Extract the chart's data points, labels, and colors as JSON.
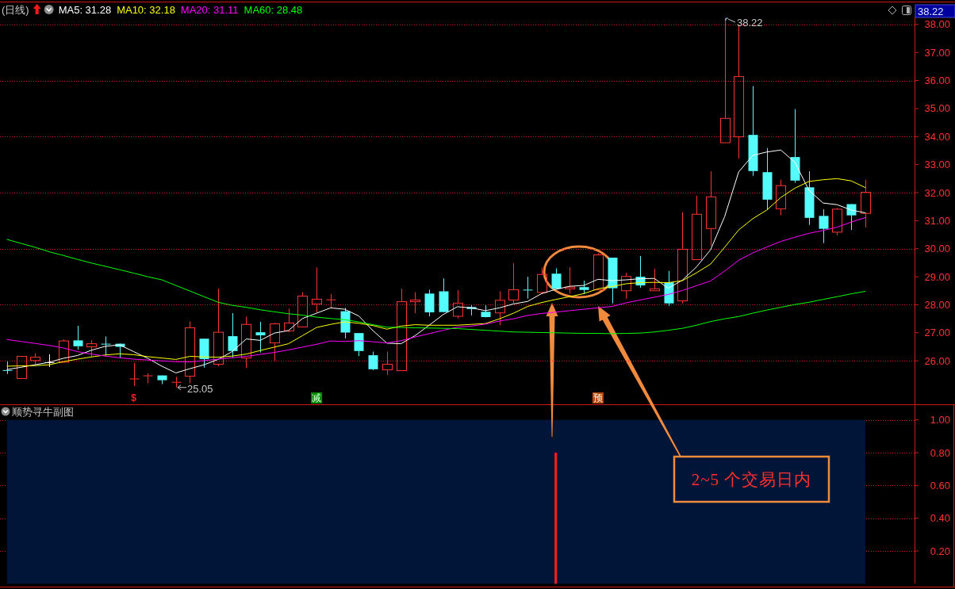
{
  "chart_data": [
    {
      "type": "candlestick",
      "title": "(日线)",
      "categories": [
        null,
        null,
        null,
        null,
        null,
        null,
        null,
        null,
        null,
        null,
        null,
        null,
        null,
        null,
        null,
        null,
        null,
        null,
        null,
        null,
        null,
        null,
        null,
        null,
        null,
        null,
        null,
        null,
        null,
        null,
        null,
        null,
        null,
        null,
        null,
        null,
        null,
        null,
        null,
        null,
        null,
        null,
        null,
        null,
        null,
        null,
        null,
        null,
        null,
        null,
        null,
        null,
        null,
        null,
        null,
        null,
        null,
        null,
        null,
        null,
        null,
        null,
        null,
        null,
        null
      ],
      "ohlc": [
        [
          25.67,
          25.97,
          25.53,
          25.67
        ],
        [
          25.37,
          26.16,
          25.37,
          26.16
        ],
        [
          26.01,
          26.27,
          25.82,
          26.13
        ],
        [
          25.95,
          26.23,
          25.78,
          25.95
        ],
        [
          25.95,
          26.77,
          25.95,
          26.71
        ],
        [
          26.73,
          27.25,
          26.4,
          26.52
        ],
        [
          26.5,
          26.74,
          26.12,
          26.61
        ],
        [
          26.61,
          26.87,
          26.19,
          26.61
        ],
        [
          26.61,
          26.62,
          26.12,
          26.5
        ],
        [
          25.37,
          25.93,
          25.1,
          25.37
        ],
        [
          25.48,
          25.55,
          25.2,
          25.48
        ],
        [
          25.48,
          25.48,
          25.17,
          25.31
        ],
        [
          25.25,
          25.43,
          25.05,
          25.25
        ],
        [
          25.45,
          27.41,
          25.2,
          27.18
        ],
        [
          26.79,
          26.79,
          25.76,
          26.06
        ],
        [
          25.88,
          28.57,
          25.81,
          27.02
        ],
        [
          26.88,
          27.7,
          26.12,
          26.35
        ],
        [
          26.1,
          27.58,
          25.74,
          27.3
        ],
        [
          27.02,
          27.39,
          26.3,
          26.91
        ],
        [
          26.64,
          27.35,
          26.0,
          27.32
        ],
        [
          27.07,
          27.86,
          27.02,
          27.35
        ],
        [
          27.21,
          28.45,
          27.21,
          28.31
        ],
        [
          28.03,
          29.33,
          27.73,
          28.2
        ],
        [
          28.19,
          28.38,
          27.89,
          28.19
        ],
        [
          27.77,
          27.89,
          26.8,
          27.01
        ],
        [
          26.99,
          26.99,
          26.17,
          26.35
        ],
        [
          26.2,
          26.33,
          25.67,
          25.7
        ],
        [
          25.68,
          26.33,
          25.5,
          25.88
        ],
        [
          25.65,
          28.57,
          25.65,
          28.11
        ],
        [
          28.11,
          28.45,
          27.7,
          28.17
        ],
        [
          28.4,
          28.54,
          27.59,
          27.73
        ],
        [
          28.48,
          28.94,
          27.74,
          27.74
        ],
        [
          27.59,
          28.52,
          27.51,
          28.06
        ],
        [
          27.92,
          27.98,
          27.62,
          27.85
        ],
        [
          27.75,
          27.98,
          27.55,
          27.56
        ],
        [
          27.71,
          28.48,
          27.27,
          28.16
        ],
        [
          28.17,
          29.48,
          28.05,
          28.54
        ],
        [
          28.54,
          29.0,
          28.22,
          28.54
        ],
        [
          28.44,
          29.33,
          28.38,
          29.08
        ],
        [
          29.11,
          29.3,
          28.57,
          28.57
        ],
        [
          28.57,
          29.34,
          28.4,
          28.63
        ],
        [
          28.63,
          28.86,
          28.38,
          28.53
        ],
        [
          28.53,
          29.84,
          28.53,
          29.78
        ],
        [
          29.68,
          29.68,
          28.05,
          28.59
        ],
        [
          28.5,
          29.14,
          28.22,
          29.01
        ],
        [
          29.0,
          29.74,
          28.61,
          28.69
        ],
        [
          28.5,
          29.28,
          28.5,
          28.57
        ],
        [
          28.8,
          29.21,
          27.96,
          28.05
        ],
        [
          28.14,
          31.3,
          28.05,
          29.98
        ],
        [
          29.61,
          31.89,
          29.61,
          31.23
        ],
        [
          30.72,
          32.76,
          30.1,
          31.85
        ],
        [
          33.78,
          38.22,
          33.78,
          34.65
        ],
        [
          33.99,
          37.98,
          33.22,
          36.14
        ],
        [
          34.06,
          35.8,
          32.6,
          32.77
        ],
        [
          32.73,
          33.59,
          31.38,
          31.75
        ],
        [
          31.42,
          32.46,
          31.19,
          32.25
        ],
        [
          33.27,
          34.98,
          32.35,
          32.43
        ],
        [
          32.19,
          32.76,
          30.85,
          31.1
        ],
        [
          31.17,
          31.4,
          30.2,
          30.71
        ],
        [
          30.59,
          31.45,
          30.48,
          31.41
        ],
        [
          31.59,
          31.59,
          30.67,
          31.19
        ],
        [
          31.26,
          32.46,
          30.76,
          32.01
        ],
        null,
        null,
        null
      ],
      "colors": [
        "#54fcfc",
        "#ff3232",
        "#ff3232",
        "#ffffff",
        "#ff3232",
        "#54fcfc",
        "#ff3232",
        "#54fcfc",
        "#54fcfc",
        "#ff3232",
        "#ff3232",
        "#54fcfc",
        "#ff3232",
        "#ff3232",
        "#54fcfc",
        "#ff3232",
        "#54fcfc",
        "#ff3232",
        "#54fcfc",
        "#ff3232",
        "#ff3232",
        "#ff3232",
        "#ff3232",
        "#ff3232",
        "#54fcfc",
        "#54fcfc",
        "#54fcfc",
        "#ff3232",
        "#ff3232",
        "#ff3232",
        "#54fcfc",
        "#54fcfc",
        "#ff3232",
        "#54fcfc",
        "#54fcfc",
        "#ff3232",
        "#ff3232",
        "#54fcfc",
        "#ff3232",
        "#54fcfc",
        "#ff3232",
        "#54fcfc",
        "#ff3232",
        "#54fcfc",
        "#ff3232",
        "#54fcfc",
        "#ff3232",
        "#54fcfc",
        "#ff3232",
        "#ff3232",
        "#ff3232",
        "#ff3232",
        "#ff3232",
        "#54fcfc",
        "#54fcfc",
        "#ff3232",
        "#54fcfc",
        "#54fcfc",
        "#54fcfc",
        "#ff3232",
        "#54fcfc",
        "#ff3232",
        null,
        null,
        null
      ],
      "series": [
        {
          "name": "MA5: 31.28",
          "type": "line",
          "color": "#ffffff",
          "values": [
            25.69,
            25.77,
            25.86,
            25.95,
            26.09,
            26.19,
            26.38,
            26.52,
            26.57,
            26.33,
            26.09,
            25.81,
            25.57,
            25.72,
            25.86,
            26.05,
            26.33,
            26.78,
            26.73,
            26.99,
            27.08,
            27.51,
            27.7,
            27.89,
            27.84,
            27.6,
            27.08,
            26.63,
            26.61,
            26.9,
            27.27,
            27.65,
            27.93,
            27.89,
            27.79,
            27.89,
            28.03,
            28.12,
            28.4,
            28.55,
            28.66,
            28.69,
            28.91,
            28.86,
            28.89,
            28.93,
            28.94,
            28.59,
            28.88,
            29.35,
            29.96,
            31.14,
            32.74,
            33.33,
            33.45,
            33.52,
            33.08,
            32.08,
            31.63,
            31.57,
            31.38,
            31.28,
            null,
            null,
            null
          ]
        },
        {
          "name": "MA10: 32.18",
          "type": "line",
          "color": "#ffff00",
          "values": [
            25.81,
            25.82,
            25.83,
            25.86,
            25.97,
            26.06,
            26.14,
            26.21,
            26.25,
            26.22,
            26.15,
            26.1,
            26.05,
            26.16,
            26.14,
            26.13,
            26.17,
            26.24,
            26.37,
            26.49,
            26.61,
            26.9,
            27.19,
            27.3,
            27.39,
            27.34,
            27.26,
            27.13,
            27.24,
            27.29,
            27.27,
            27.27,
            27.27,
            27.3,
            27.33,
            27.5,
            27.7,
            27.94,
            28.08,
            28.19,
            28.29,
            28.4,
            28.57,
            28.65,
            28.75,
            28.79,
            28.8,
            28.79,
            28.86,
            29.14,
            29.45,
            30.05,
            30.67,
            31.07,
            31.38,
            31.83,
            32.16,
            32.4,
            32.46,
            32.5,
            32.42,
            32.18,
            null,
            null,
            null
          ]
        },
        {
          "name": "MA20: 31.11",
          "type": "line",
          "color": "#ff00ff",
          "values": [
            26.76,
            26.69,
            26.62,
            26.55,
            26.46,
            26.33,
            26.24,
            26.17,
            26.11,
            26.06,
            26.03,
            26.0,
            25.97,
            25.96,
            26.01,
            26.06,
            26.11,
            26.16,
            26.23,
            26.3,
            26.39,
            26.49,
            26.59,
            26.71,
            26.69,
            26.72,
            26.68,
            26.64,
            26.72,
            26.85,
            26.97,
            27.09,
            27.2,
            27.24,
            27.31,
            27.42,
            27.5,
            27.62,
            27.69,
            27.74,
            27.79,
            27.84,
            27.89,
            27.94,
            28.07,
            28.17,
            28.27,
            28.37,
            28.51,
            28.68,
            28.85,
            29.2,
            29.59,
            29.85,
            30.06,
            30.26,
            30.41,
            30.55,
            30.65,
            30.77,
            30.95,
            31.11,
            null,
            null,
            null
          ]
        },
        {
          "name": "MA60: 28.48",
          "type": "line",
          "color": "#00ff00",
          "values": [
            30.33,
            30.19,
            30.05,
            29.89,
            29.76,
            29.62,
            29.49,
            29.37,
            29.25,
            29.13,
            29.0,
            28.89,
            28.69,
            28.49,
            28.29,
            28.09,
            27.98,
            27.91,
            27.82,
            27.75,
            27.68,
            27.63,
            27.56,
            27.51,
            27.47,
            27.39,
            27.29,
            27.2,
            27.19,
            27.18,
            27.17,
            27.16,
            27.15,
            27.12,
            27.09,
            27.06,
            27.03,
            27.02,
            27.01,
            27.0,
            26.99,
            26.98,
            26.98,
            26.97,
            26.98,
            26.99,
            27.03,
            27.09,
            27.16,
            27.27,
            27.4,
            27.5,
            27.58,
            27.7,
            27.81,
            27.91,
            28.01,
            28.09,
            28.19,
            28.29,
            28.39,
            28.48,
            null,
            null,
            null
          ]
        }
      ],
      "ylim": [
        24.45,
        38.25
      ],
      "yticks": [
        {
          "value": 26,
          "label": "26.00"
        },
        {
          "value": 27,
          "label": "27.00"
        },
        {
          "value": 28,
          "label": "28.00"
        },
        {
          "value": 29,
          "label": "29.00"
        },
        {
          "value": 30,
          "label": "30.00"
        },
        {
          "value": 31,
          "label": "31.00"
        },
        {
          "value": 32,
          "label": "32.00"
        },
        {
          "value": 33,
          "label": "33.00"
        },
        {
          "value": 34,
          "label": "34.00"
        },
        {
          "value": 35,
          "label": "35.00"
        },
        {
          "value": 36,
          "label": "36.00"
        },
        {
          "value": 37,
          "label": "37.00"
        },
        {
          "value": 38,
          "label": "38.00"
        }
      ],
      "grid": "y",
      "legend": "top left",
      "annotations": [
        "38.22",
        "25.05",
        "$",
        "减",
        "预",
        "2~5 个交易日内",
        "38.22"
      ]
    },
    {
      "type": "bar",
      "title": "顺势寻牛副图",
      "categories": [
        null,
        null,
        null,
        null,
        null,
        null,
        null,
        null,
        null,
        null,
        null,
        null,
        null,
        null,
        null,
        null,
        null,
        null,
        null,
        null,
        null,
        null,
        null,
        null,
        null,
        null,
        null,
        null,
        null,
        null,
        null,
        null,
        null,
        null,
        null,
        null,
        null,
        null,
        null,
        null,
        null,
        null,
        null,
        null,
        null,
        null,
        null,
        null,
        null,
        null,
        null,
        null,
        null,
        null,
        null,
        null,
        null,
        null,
        null,
        null,
        null,
        null,
        null,
        null,
        null
      ],
      "values": [
        null,
        null,
        null,
        null,
        null,
        null,
        null,
        null,
        null,
        null,
        null,
        null,
        null,
        null,
        null,
        null,
        null,
        null,
        null,
        null,
        null,
        null,
        null,
        null,
        null,
        null,
        null,
        null,
        null,
        null,
        null,
        null,
        null,
        null,
        null,
        null,
        null,
        null,
        null,
        0.8,
        null,
        null,
        null,
        null,
        null,
        null,
        null,
        null,
        null,
        null,
        null,
        null,
        null,
        null,
        null,
        null,
        null,
        null,
        null,
        null,
        null,
        null,
        null,
        null,
        null
      ],
      "color": "#ff1e1e",
      "bands": [
        {
          "axis": "y",
          "from": 0,
          "to": 1,
          "color": "#001537"
        }
      ],
      "ylim": [
        0,
        1.1
      ],
      "yticks": [
        {
          "value": 0.2,
          "label": "0.20"
        },
        {
          "value": 0.4,
          "label": "0.40"
        },
        {
          "value": 0.6,
          "label": "0.60"
        },
        {
          "value": 0.8,
          "label": "0.80"
        },
        {
          "value": 1,
          "label": "1.00"
        }
      ],
      "grid": "y"
    }
  ]
}
